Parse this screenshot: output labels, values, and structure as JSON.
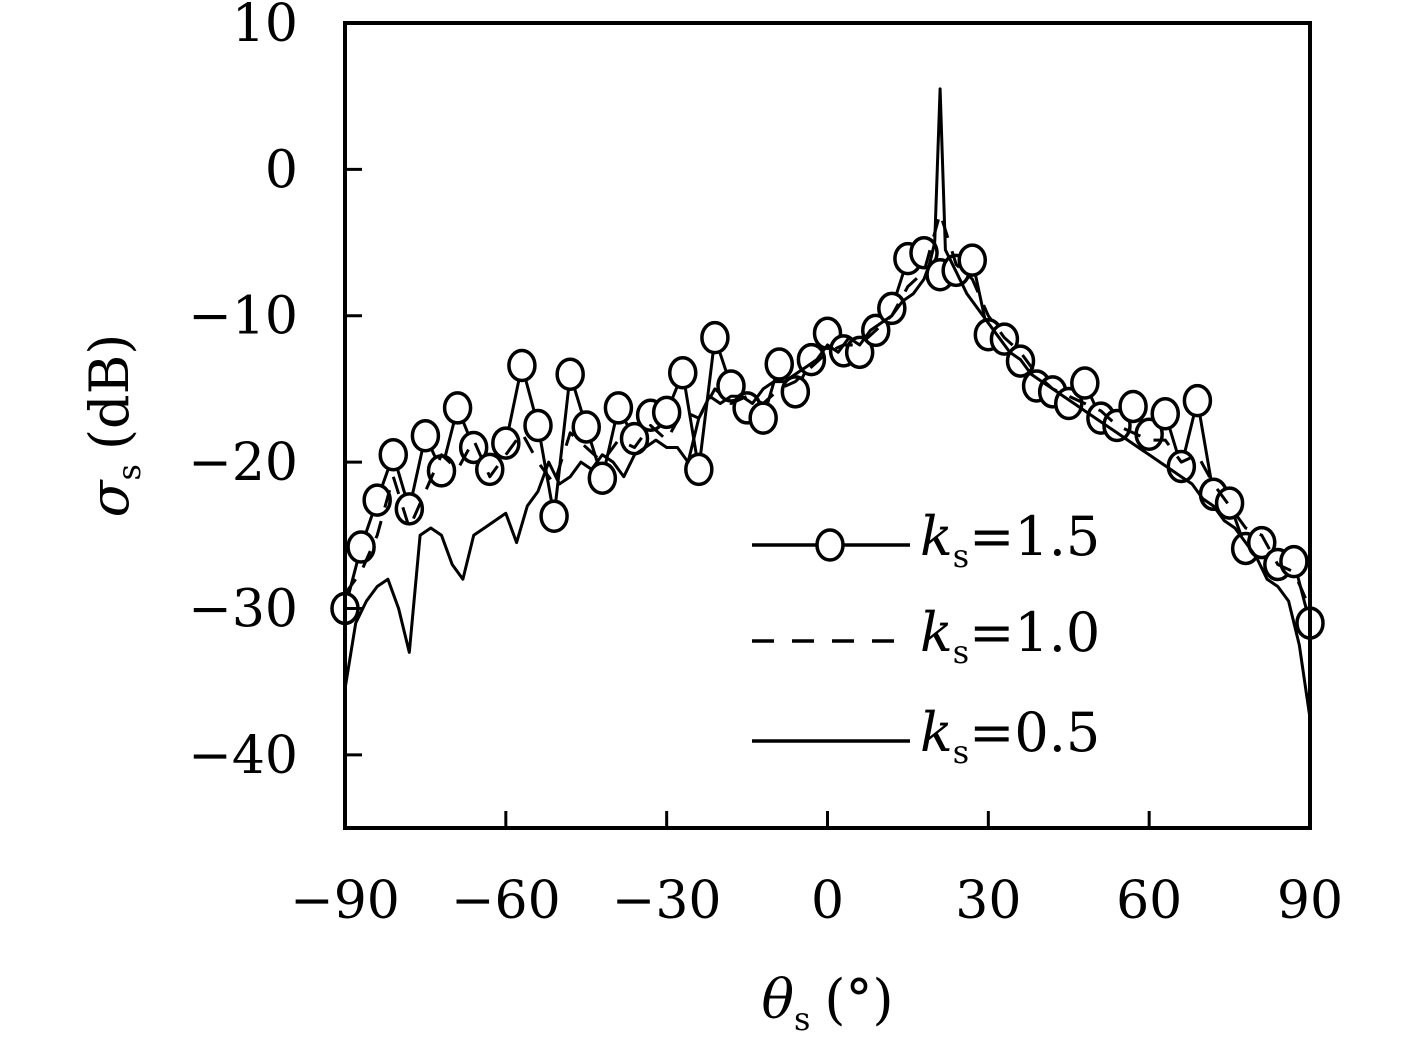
{
  "chart_data": {
    "type": "line",
    "xlabel": {
      "symbol": "θ",
      "sub": "s",
      "unit": "(°)"
    },
    "ylabel": {
      "symbol": "σ",
      "sub": "s",
      "unit": "(dB)"
    },
    "xlim": [
      -90,
      90
    ],
    "ylim": [
      -45,
      10
    ],
    "xticks": [
      -90,
      -60,
      -30,
      0,
      30,
      60,
      90
    ],
    "yticks": [
      10,
      0,
      -10,
      -20,
      -30,
      -40
    ],
    "xtick_labels": [
      "−90",
      "−60",
      "−30",
      "0",
      "30",
      "60",
      "90"
    ],
    "ytick_labels": [
      "10",
      "0",
      "−10",
      "−20",
      "−30",
      "−40"
    ],
    "legend_position": "lower-right",
    "grid": false,
    "series": [
      {
        "name": "k_s=1.5",
        "label_symbol": "k",
        "label_sub": "s",
        "label_value": "=1.5",
        "style": "solid-circle",
        "x": [
          -90,
          -87,
          -84,
          -81,
          -78,
          -75,
          -72,
          -69,
          -66,
          -63,
          -60,
          -57,
          -54,
          -51,
          -48,
          -45,
          -42,
          -39,
          -36,
          -33,
          -30,
          -27,
          -24,
          -21,
          -18,
          -15,
          -12,
          -9,
          -6,
          -3,
          0,
          3,
          6,
          9,
          12,
          15,
          18,
          21,
          24,
          27,
          30,
          33,
          36,
          39,
          42,
          45,
          48,
          51,
          54,
          57,
          60,
          63,
          66,
          69,
          72,
          75,
          78,
          81,
          84,
          87,
          90
        ],
        "y": [
          -30,
          -25.8,
          -22.6,
          -19.5,
          -23.2,
          -18.2,
          -20.6,
          -16.3,
          -19,
          -20.5,
          -18.7,
          -13.4,
          -17.5,
          -23.7,
          -14,
          -17.6,
          -21.1,
          -16.3,
          -18.4,
          -16.8,
          -16.6,
          -13.9,
          -20.5,
          -11.5,
          -14.8,
          -16.3,
          -17,
          -13.3,
          -15.2,
          -13,
          -11.2,
          -12.4,
          -12.5,
          -11,
          -9.5,
          -6.1,
          -5.7,
          -7.2,
          -6.9,
          -6.2,
          -11.3,
          -11.6,
          -13.1,
          -14.8,
          -15.2,
          -16,
          -14.6,
          -17,
          -17.5,
          -16.2,
          -18.1,
          -16.7,
          -20.3,
          -15.8,
          -22.2,
          -22.8,
          -25.9,
          -25.5,
          -27,
          -26.8,
          -31
        ]
      },
      {
        "name": "k_s=1.0",
        "label_symbol": "k",
        "label_sub": "s",
        "label_value": "=1.0",
        "style": "dashed",
        "x": [
          -90,
          -87,
          -84,
          -81,
          -78,
          -75,
          -72,
          -69,
          -66,
          -63,
          -60,
          -57,
          -54,
          -51,
          -48,
          -45,
          -42,
          -39,
          -36,
          -33,
          -30,
          -27,
          -24,
          -21,
          -18,
          -15,
          -12,
          -9,
          -6,
          -3,
          0,
          3,
          6,
          9,
          12,
          15,
          18,
          21,
          24,
          27,
          30,
          33,
          36,
          39,
          42,
          45,
          48,
          51,
          54,
          57,
          60,
          63,
          66,
          69,
          72,
          75,
          78,
          81,
          84,
          87,
          90
        ],
        "y": [
          -29,
          -27.5,
          -25,
          -21,
          -24.5,
          -22,
          -19.5,
          -20.5,
          -18.5,
          -21,
          -19.5,
          -18,
          -20,
          -21.5,
          -18,
          -19,
          -20,
          -18.5,
          -19,
          -17.5,
          -18.5,
          -16.5,
          -17,
          -15,
          -16,
          -15.5,
          -16,
          -15,
          -14.5,
          -13.5,
          -12.5,
          -12,
          -12,
          -11,
          -10,
          -8,
          -7,
          -3,
          -6.5,
          -7.5,
          -10,
          -11.5,
          -12.5,
          -14,
          -15,
          -15.5,
          -16,
          -16.5,
          -17.5,
          -18,
          -18.5,
          -18.5,
          -20,
          -19.5,
          -21.5,
          -23,
          -24.5,
          -25,
          -27,
          -27.5,
          -30
        ]
      },
      {
        "name": "k_s=0.5",
        "label_symbol": "k",
        "label_sub": "s",
        "label_value": "=0.5",
        "style": "solid",
        "x": [
          -90,
          -88,
          -86,
          -84,
          -82,
          -80,
          -78,
          -76,
          -74,
          -72,
          -70,
          -68,
          -66,
          -64,
          -62,
          -60,
          -58,
          -56,
          -54,
          -52,
          -50,
          -48,
          -46,
          -44,
          -42,
          -40,
          -38,
          -36,
          -34,
          -32,
          -30,
          -28,
          -26,
          -24,
          -22,
          -20,
          -18,
          -16,
          -14,
          -12,
          -10,
          -8,
          -6,
          -4,
          -2,
          0,
          2,
          4,
          6,
          8,
          10,
          12,
          14,
          16,
          18,
          19,
          20,
          21,
          22,
          24,
          26,
          28,
          30,
          32,
          34,
          36,
          38,
          40,
          42,
          44,
          46,
          48,
          50,
          52,
          54,
          56,
          58,
          60,
          62,
          64,
          66,
          68,
          70,
          72,
          74,
          76,
          78,
          80,
          82,
          84,
          86,
          88,
          90
        ],
        "y": [
          -35.5,
          -31,
          -29.5,
          -28.5,
          -28,
          -30,
          -33,
          -25,
          -24.5,
          -25,
          -27,
          -28,
          -25,
          -24.5,
          -24,
          -23.5,
          -25.5,
          -23,
          -22,
          -20,
          -21.5,
          -21,
          -20,
          -20.5,
          -19.5,
          -20,
          -21,
          -19.5,
          -19,
          -18.5,
          -19,
          -19,
          -20,
          -17,
          -15.5,
          -16,
          -15.5,
          -15.5,
          -16,
          -15,
          -14.5,
          -14.5,
          -14,
          -13.5,
          -13,
          -12,
          -12.5,
          -11.5,
          -12,
          -11,
          -10.5,
          -10,
          -9,
          -8.5,
          -7.5,
          -6.5,
          -5,
          5.5,
          -5.5,
          -7,
          -8.5,
          -9.5,
          -10.5,
          -11.5,
          -12.5,
          -13,
          -14,
          -14.5,
          -15,
          -15.5,
          -16,
          -16.5,
          -17,
          -17.5,
          -18,
          -18.5,
          -19,
          -19.5,
          -20,
          -20.5,
          -21,
          -21.5,
          -22.5,
          -23,
          -24,
          -24.5,
          -25.5,
          -26.5,
          -28,
          -28.5,
          -29.5,
          -32.5,
          -37.5
        ]
      }
    ]
  }
}
